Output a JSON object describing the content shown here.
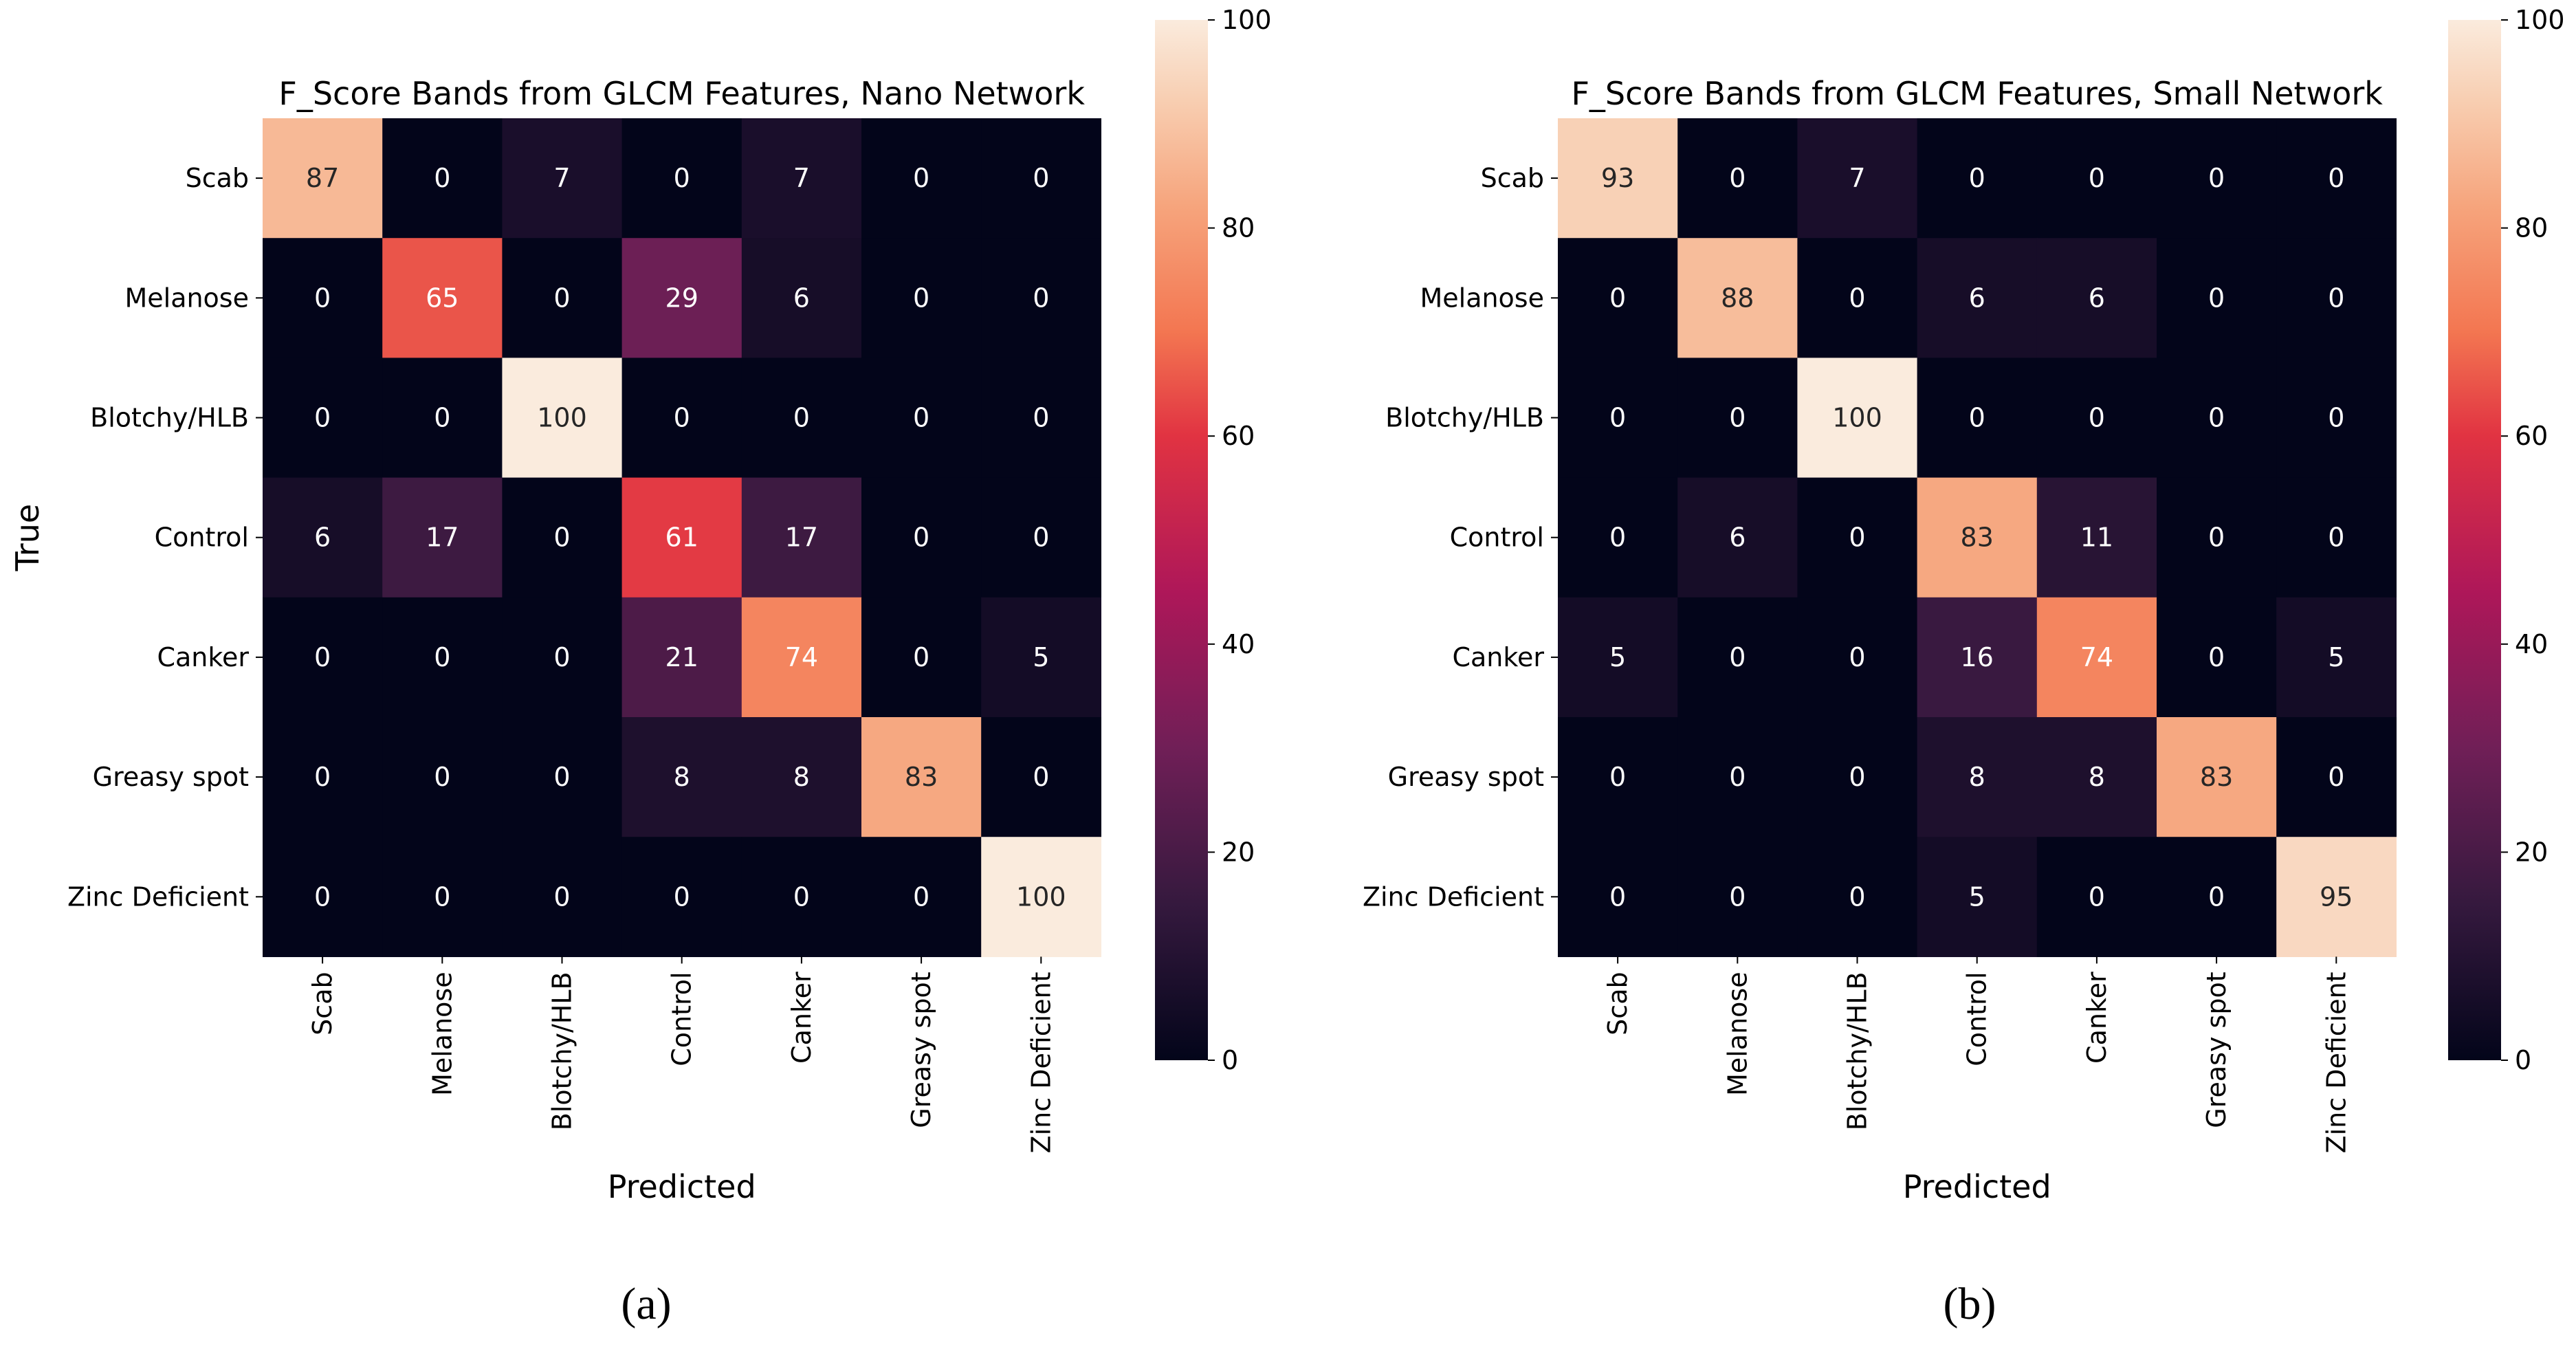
{
  "chart_data": [
    {
      "type": "heatmap",
      "panel_label": "(a)",
      "title": "F_Score Bands from GLCM Features, Nano Network",
      "xlabel": "Predicted",
      "ylabel": "True",
      "x_categories": [
        "Scab",
        "Melanose",
        "Blotchy/HLB",
        "Control",
        "Canker",
        "Greasy spot",
        "Zinc Deficient"
      ],
      "y_categories": [
        "Scab",
        "Melanose",
        "Blotchy/HLB",
        "Control",
        "Canker",
        "Greasy spot",
        "Zinc Deficient"
      ],
      "values": [
        [
          87,
          0,
          7,
          0,
          7,
          0,
          0
        ],
        [
          0,
          65,
          0,
          29,
          6,
          0,
          0
        ],
        [
          0,
          0,
          100,
          0,
          0,
          0,
          0
        ],
        [
          6,
          17,
          0,
          61,
          17,
          0,
          0
        ],
        [
          0,
          0,
          0,
          21,
          74,
          0,
          5
        ],
        [
          0,
          0,
          0,
          8,
          8,
          83,
          0
        ],
        [
          0,
          0,
          0,
          0,
          0,
          0,
          100
        ]
      ],
      "colorbar": {
        "range": [
          0,
          100
        ],
        "ticks": [
          0,
          20,
          40,
          60,
          80,
          100
        ],
        "colormap": "rocket"
      }
    },
    {
      "type": "heatmap",
      "panel_label": "(b)",
      "title": "F_Score Bands from GLCM Features, Small Network",
      "xlabel": "Predicted",
      "ylabel": "",
      "x_categories": [
        "Scab",
        "Melanose",
        "Blotchy/HLB",
        "Control",
        "Canker",
        "Greasy spot",
        "Zinc Deficient"
      ],
      "y_categories": [
        "Scab",
        "Melanose",
        "Blotchy/HLB",
        "Control",
        "Canker",
        "Greasy spot",
        "Zinc Deficient"
      ],
      "values": [
        [
          93,
          0,
          7,
          0,
          0,
          0,
          0
        ],
        [
          0,
          88,
          0,
          6,
          6,
          0,
          0
        ],
        [
          0,
          0,
          100,
          0,
          0,
          0,
          0
        ],
        [
          0,
          6,
          0,
          83,
          11,
          0,
          0
        ],
        [
          5,
          0,
          0,
          16,
          74,
          0,
          5
        ],
        [
          0,
          0,
          0,
          8,
          8,
          83,
          0
        ],
        [
          0,
          0,
          0,
          5,
          0,
          0,
          95
        ]
      ],
      "colorbar": {
        "range": [
          0,
          100
        ],
        "ticks": [
          0,
          20,
          40,
          60,
          80,
          100
        ],
        "colormap": "rocket"
      }
    }
  ]
}
